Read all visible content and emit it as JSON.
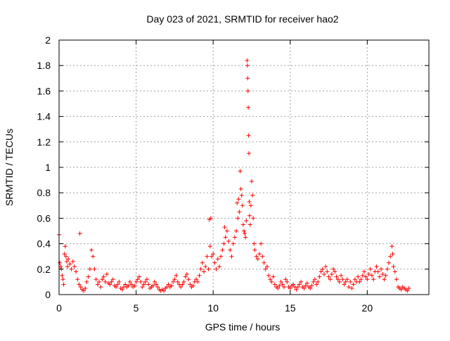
{
  "chart_data": {
    "type": "scatter",
    "title": "Day 023 of 2021, SRMTID for receiver hao2",
    "xlabel": "GPS time / hours",
    "ylabel": "SRMTID / TECUs",
    "xlim": [
      0,
      24
    ],
    "ylim": [
      0,
      2
    ],
    "x_ticks": [
      0,
      5,
      10,
      15,
      20
    ],
    "x_tick_labels": [
      "0",
      "5",
      "10",
      "15",
      "20"
    ],
    "y_ticks": [
      0,
      0.2,
      0.4,
      0.6,
      0.8,
      1,
      1.2,
      1.4,
      1.6,
      1.8,
      2
    ],
    "y_tick_labels": [
      "0",
      "0.2",
      "0.4",
      "0.6",
      "0.8",
      "1",
      "1.2",
      "1.4",
      "1.6",
      "1.8",
      "2"
    ],
    "grid": true,
    "marker": "+",
    "color": "#ff0000",
    "series": [
      {
        "name": "SRMTID",
        "points": [
          [
            0.0,
            0.47
          ],
          [
            0.05,
            0.25
          ],
          [
            0.1,
            0.22
          ],
          [
            0.15,
            0.2
          ],
          [
            0.2,
            0.15
          ],
          [
            0.25,
            0.12
          ],
          [
            0.3,
            0.08
          ],
          [
            0.35,
            0.32
          ],
          [
            0.4,
            0.38
          ],
          [
            0.45,
            0.3
          ],
          [
            0.5,
            0.26
          ],
          [
            0.55,
            0.22
          ],
          [
            0.6,
            0.28
          ],
          [
            0.7,
            0.24
          ],
          [
            0.8,
            0.2
          ],
          [
            0.9,
            0.26
          ],
          [
            1.0,
            0.22
          ],
          [
            1.1,
            0.18
          ],
          [
            1.2,
            0.12
          ],
          [
            1.3,
            0.08
          ],
          [
            1.35,
            0.48
          ],
          [
            1.4,
            0.06
          ],
          [
            1.5,
            0.04
          ],
          [
            1.6,
            0.03
          ],
          [
            1.7,
            0.05
          ],
          [
            1.8,
            0.1
          ],
          [
            1.9,
            0.14
          ],
          [
            2.0,
            0.2
          ],
          [
            2.1,
            0.35
          ],
          [
            2.2,
            0.3
          ],
          [
            2.3,
            0.2
          ],
          [
            2.4,
            0.12
          ],
          [
            2.5,
            0.08
          ],
          [
            2.6,
            0.1
          ],
          [
            2.7,
            0.06
          ],
          [
            2.8,
            0.12
          ],
          [
            2.9,
            0.14
          ],
          [
            3.0,
            0.1
          ],
          [
            3.1,
            0.16
          ],
          [
            3.2,
            0.09
          ],
          [
            3.3,
            0.08
          ],
          [
            3.4,
            0.1
          ],
          [
            3.5,
            0.12
          ],
          [
            3.6,
            0.07
          ],
          [
            3.7,
            0.06
          ],
          [
            3.8,
            0.08
          ],
          [
            3.9,
            0.1
          ],
          [
            4.0,
            0.05
          ],
          [
            4.1,
            0.04
          ],
          [
            4.2,
            0.06
          ],
          [
            4.3,
            0.08
          ],
          [
            4.4,
            0.06
          ],
          [
            4.5,
            0.07
          ],
          [
            4.6,
            0.1
          ],
          [
            4.7,
            0.08
          ],
          [
            4.8,
            0.06
          ],
          [
            4.9,
            0.07
          ],
          [
            5.0,
            0.1
          ],
          [
            5.1,
            0.12
          ],
          [
            5.2,
            0.14
          ],
          [
            5.3,
            0.1
          ],
          [
            5.4,
            0.06
          ],
          [
            5.5,
            0.08
          ],
          [
            5.6,
            0.1
          ],
          [
            5.7,
            0.12
          ],
          [
            5.8,
            0.08
          ],
          [
            5.9,
            0.05
          ],
          [
            6.0,
            0.06
          ],
          [
            6.1,
            0.07
          ],
          [
            6.2,
            0.1
          ],
          [
            6.3,
            0.08
          ],
          [
            6.4,
            0.06
          ],
          [
            6.5,
            0.04
          ],
          [
            6.6,
            0.03
          ],
          [
            6.7,
            0.04
          ],
          [
            6.8,
            0.03
          ],
          [
            6.9,
            0.05
          ],
          [
            7.0,
            0.06
          ],
          [
            7.1,
            0.08
          ],
          [
            7.2,
            0.06
          ],
          [
            7.3,
            0.07
          ],
          [
            7.4,
            0.1
          ],
          [
            7.5,
            0.12
          ],
          [
            7.6,
            0.15
          ],
          [
            7.7,
            0.1
          ],
          [
            7.8,
            0.08
          ],
          [
            7.9,
            0.06
          ],
          [
            8.0,
            0.08
          ],
          [
            8.1,
            0.1
          ],
          [
            8.2,
            0.14
          ],
          [
            8.3,
            0.16
          ],
          [
            8.4,
            0.12
          ],
          [
            8.5,
            0.08
          ],
          [
            8.6,
            0.06
          ],
          [
            8.7,
            0.07
          ],
          [
            8.8,
            0.1
          ],
          [
            8.9,
            0.12
          ],
          [
            9.0,
            0.1
          ],
          [
            9.1,
            0.15
          ],
          [
            9.2,
            0.2
          ],
          [
            9.3,
            0.25
          ],
          [
            9.4,
            0.18
          ],
          [
            9.5,
            0.22
          ],
          [
            9.6,
            0.3
          ],
          [
            9.7,
            0.2
          ],
          [
            9.75,
            0.59
          ],
          [
            9.8,
            0.38
          ],
          [
            9.85,
            0.6
          ],
          [
            9.9,
            0.3
          ],
          [
            10.0,
            0.32
          ],
          [
            10.1,
            0.25
          ],
          [
            10.2,
            0.2
          ],
          [
            10.3,
            0.28
          ],
          [
            10.4,
            0.22
          ],
          [
            10.5,
            0.3
          ],
          [
            10.6,
            0.35
          ],
          [
            10.7,
            0.4
          ],
          [
            10.75,
            0.53
          ],
          [
            10.8,
            0.45
          ],
          [
            10.9,
            0.5
          ],
          [
            11.0,
            0.42
          ],
          [
            11.1,
            0.35
          ],
          [
            11.2,
            0.3
          ],
          [
            11.3,
            0.4
          ],
          [
            11.4,
            0.45
          ],
          [
            11.5,
            0.5
          ],
          [
            11.55,
            0.72
          ],
          [
            11.6,
            0.6
          ],
          [
            11.65,
            0.75
          ],
          [
            11.7,
            0.65
          ],
          [
            11.75,
            0.97
          ],
          [
            11.8,
            0.83
          ],
          [
            11.85,
            0.78
          ],
          [
            11.9,
            0.7
          ],
          [
            11.95,
            0.55
          ],
          [
            12.0,
            0.5
          ],
          [
            12.05,
            0.48
          ],
          [
            12.1,
            0.45
          ],
          [
            12.15,
            0.58
          ],
          [
            12.2,
            1.84
          ],
          [
            12.22,
            1.8
          ],
          [
            12.24,
            1.7
          ],
          [
            12.26,
            1.6
          ],
          [
            12.28,
            1.47
          ],
          [
            12.3,
            1.25
          ],
          [
            12.32,
            1.11
          ],
          [
            12.34,
            0.73
          ],
          [
            12.36,
            0.62
          ],
          [
            12.4,
            0.55
          ],
          [
            12.45,
            0.7
          ],
          [
            12.5,
            0.89
          ],
          [
            12.55,
            0.78
          ],
          [
            12.6,
            0.6
          ],
          [
            12.65,
            0.4
          ],
          [
            12.7,
            0.35
          ],
          [
            12.8,
            0.3
          ],
          [
            12.9,
            0.28
          ],
          [
            13.0,
            0.32
          ],
          [
            13.1,
            0.4
          ],
          [
            13.2,
            0.3
          ],
          [
            13.3,
            0.25
          ],
          [
            13.4,
            0.2
          ],
          [
            13.5,
            0.22
          ],
          [
            13.6,
            0.15
          ],
          [
            13.7,
            0.12
          ],
          [
            13.8,
            0.1
          ],
          [
            13.9,
            0.14
          ],
          [
            14.0,
            0.08
          ],
          [
            14.1,
            0.06
          ],
          [
            14.2,
            0.05
          ],
          [
            14.3,
            0.07
          ],
          [
            14.4,
            0.1
          ],
          [
            14.5,
            0.08
          ],
          [
            14.6,
            0.06
          ],
          [
            14.7,
            0.12
          ],
          [
            14.8,
            0.1
          ],
          [
            14.9,
            0.06
          ],
          [
            15.0,
            0.05
          ],
          [
            15.1,
            0.07
          ],
          [
            15.2,
            0.08
          ],
          [
            15.3,
            0.06
          ],
          [
            15.4,
            0.04
          ],
          [
            15.5,
            0.06
          ],
          [
            15.6,
            0.08
          ],
          [
            15.7,
            0.1
          ],
          [
            15.8,
            0.06
          ],
          [
            15.9,
            0.05
          ],
          [
            16.0,
            0.07
          ],
          [
            16.1,
            0.09
          ],
          [
            16.2,
            0.06
          ],
          [
            16.3,
            0.05
          ],
          [
            16.4,
            0.07
          ],
          [
            16.5,
            0.1
          ],
          [
            16.6,
            0.12
          ],
          [
            16.7,
            0.08
          ],
          [
            16.8,
            0.1
          ],
          [
            16.9,
            0.14
          ],
          [
            17.0,
            0.18
          ],
          [
            17.1,
            0.2
          ],
          [
            17.2,
            0.16
          ],
          [
            17.3,
            0.22
          ],
          [
            17.4,
            0.18
          ],
          [
            17.5,
            0.14
          ],
          [
            17.6,
            0.12
          ],
          [
            17.7,
            0.16
          ],
          [
            17.8,
            0.2
          ],
          [
            17.9,
            0.18
          ],
          [
            18.0,
            0.14
          ],
          [
            18.1,
            0.12
          ],
          [
            18.2,
            0.1
          ],
          [
            18.3,
            0.15
          ],
          [
            18.4,
            0.12
          ],
          [
            18.5,
            0.08
          ],
          [
            18.6,
            0.1
          ],
          [
            18.7,
            0.12
          ],
          [
            18.8,
            0.06
          ],
          [
            18.9,
            0.1
          ],
          [
            19.0,
            0.05
          ],
          [
            19.1,
            0.08
          ],
          [
            19.2,
            0.12
          ],
          [
            19.3,
            0.1
          ],
          [
            19.4,
            0.14
          ],
          [
            19.5,
            0.1
          ],
          [
            19.6,
            0.12
          ],
          [
            19.7,
            0.15
          ],
          [
            19.8,
            0.18
          ],
          [
            19.9,
            0.14
          ],
          [
            20.0,
            0.12
          ],
          [
            20.1,
            0.16
          ],
          [
            20.2,
            0.2
          ],
          [
            20.3,
            0.15
          ],
          [
            20.4,
            0.12
          ],
          [
            20.5,
            0.18
          ],
          [
            20.6,
            0.22
          ],
          [
            20.7,
            0.18
          ],
          [
            20.8,
            0.14
          ],
          [
            20.9,
            0.2
          ],
          [
            21.0,
            0.16
          ],
          [
            21.1,
            0.12
          ],
          [
            21.2,
            0.15
          ],
          [
            21.3,
            0.2
          ],
          [
            21.4,
            0.25
          ],
          [
            21.5,
            0.3
          ],
          [
            21.6,
            0.38
          ],
          [
            21.65,
            0.32
          ],
          [
            21.7,
            0.22
          ],
          [
            21.8,
            0.18
          ],
          [
            21.9,
            0.12
          ],
          [
            22.0,
            0.06
          ],
          [
            22.1,
            0.05
          ],
          [
            22.2,
            0.04
          ],
          [
            22.3,
            0.06
          ],
          [
            22.4,
            0.05
          ],
          [
            22.5,
            0.04
          ],
          [
            22.6,
            0.03
          ],
          [
            22.7,
            0.05
          ]
        ]
      }
    ]
  }
}
